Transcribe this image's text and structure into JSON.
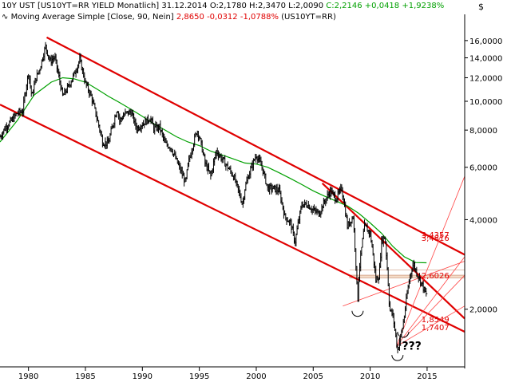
{
  "header": {
    "line1": {
      "symbol": "10Y UST [US10YT=RR YIELD Monatlich]",
      "date": "31.12.2014",
      "ohl": "O:2,1780 H:2,3470 L:2,0090",
      "close": "C:2,2146",
      "change": "+0,0418",
      "change_pct": "+1,9238%"
    },
    "line2": {
      "icon": "moving-average-icon",
      "label": "Moving Average Simple [Close, 90, Nein]",
      "value": "2,8650",
      "change": "-0,0312",
      "change_pct": "-1,0788%",
      "source": "(US10YT=RR)"
    },
    "currency": "$"
  },
  "colors": {
    "price": "#000000",
    "moving_average": "#00a000",
    "trendlines": "#e00000",
    "fib_lines": "#ff4444",
    "level_band": "#f5dcc8",
    "background": "#ffffff"
  },
  "chart_data": {
    "type": "ohlc",
    "x_axis": {
      "range": [
        1977.5,
        2018.3
      ],
      "ticks": [
        "1980",
        "1985",
        "1990",
        "1995",
        "2000",
        "2005",
        "2010",
        "2015"
      ]
    },
    "y_axis": {
      "scale": "log",
      "range": [
        1.28,
        18.2
      ],
      "ticks": [
        "16,0000",
        "14,0000",
        "12,0000",
        "10,0000",
        "8,0000",
        "6,0000",
        "4,0000",
        "2,0000"
      ],
      "side": "right"
    },
    "grid": false,
    "series": [
      {
        "kind": "price",
        "points": [
          [
            1977.5,
            7.6
          ],
          [
            1978,
            8.2
          ],
          [
            1978.5,
            8.6
          ],
          [
            1979,
            9.1
          ],
          [
            1979.5,
            9.3
          ],
          [
            1980,
            12.5
          ],
          [
            1980.3,
            10.3
          ],
          [
            1980.6,
            11.8
          ],
          [
            1981,
            12.9
          ],
          [
            1981.5,
            15.3
          ],
          [
            1981.9,
            13.6
          ],
          [
            1982.3,
            14.1
          ],
          [
            1982.6,
            12.4
          ],
          [
            1983,
            10.4
          ],
          [
            1983.5,
            11.2
          ],
          [
            1984,
            12.3
          ],
          [
            1984.5,
            13.8
          ],
          [
            1985,
            11.5
          ],
          [
            1985.5,
            10.4
          ],
          [
            1986,
            8.8
          ],
          [
            1986.5,
            7.3
          ],
          [
            1987,
            7.2
          ],
          [
            1987.5,
            8.6
          ],
          [
            1987.8,
            9.5
          ],
          [
            1988,
            8.6
          ],
          [
            1988.5,
            9.1
          ],
          [
            1989,
            9.2
          ],
          [
            1989.5,
            8.1
          ],
          [
            1990,
            8.4
          ],
          [
            1990.7,
            8.8
          ],
          [
            1991,
            8.1
          ],
          [
            1991.5,
            8.2
          ],
          [
            1992,
            7.2
          ],
          [
            1992.5,
            7.0
          ],
          [
            1993,
            6.3
          ],
          [
            1993.8,
            5.3
          ],
          [
            1994,
            6.1
          ],
          [
            1994.8,
            8.0
          ],
          [
            1995,
            7.6
          ],
          [
            1995.5,
            6.2
          ],
          [
            1996,
            5.6
          ],
          [
            1996.5,
            6.8
          ],
          [
            1997,
            6.4
          ],
          [
            1997.5,
            6.0
          ],
          [
            1998,
            5.6
          ],
          [
            1998.8,
            4.5
          ],
          [
            1999,
            5.1
          ],
          [
            1999.5,
            5.9
          ],
          [
            2000,
            6.6
          ],
          [
            2000.5,
            6.0
          ],
          [
            2001,
            5.1
          ],
          [
            2001.5,
            5.1
          ],
          [
            2002,
            5.0
          ],
          [
            2002.5,
            4.1
          ],
          [
            2003,
            3.9
          ],
          [
            2003.4,
            3.35
          ],
          [
            2004,
            4.5
          ],
          [
            2004.5,
            4.5
          ],
          [
            2005,
            4.3
          ],
          [
            2005.5,
            4.2
          ],
          [
            2006,
            4.6
          ],
          [
            2006.5,
            5.0
          ],
          [
            2007,
            4.7
          ],
          [
            2007.5,
            5.1
          ],
          [
            2008,
            3.8
          ],
          [
            2008.5,
            4.1
          ],
          [
            2008.9,
            2.08
          ],
          [
            2009,
            2.6
          ],
          [
            2009.5,
            3.8
          ],
          [
            2010,
            3.6
          ],
          [
            2010.5,
            2.5
          ],
          [
            2010.8,
            2.6
          ],
          [
            2011,
            3.4
          ],
          [
            2011.3,
            3.5
          ],
          [
            2011.7,
            2.0
          ],
          [
            2012,
            1.9
          ],
          [
            2012.4,
            1.45
          ],
          [
            2012.8,
            1.7
          ],
          [
            2013,
            1.9
          ],
          [
            2013.5,
            2.6
          ],
          [
            2013.8,
            2.85
          ],
          [
            2014,
            2.7
          ],
          [
            2014.5,
            2.45
          ],
          [
            2014.95,
            2.2146
          ]
        ]
      },
      {
        "kind": "moving_average",
        "name": "Moving Average Simple [Close, 90, Nein]",
        "points": [
          [
            1977.5,
            7.3
          ],
          [
            1979,
            8.6
          ],
          [
            1980.5,
            10.5
          ],
          [
            1982,
            11.6
          ],
          [
            1983,
            12.0
          ],
          [
            1984,
            11.9
          ],
          [
            1985,
            11.6
          ],
          [
            1986,
            11.0
          ],
          [
            1987,
            10.4
          ],
          [
            1988,
            9.9
          ],
          [
            1989,
            9.4
          ],
          [
            1990,
            8.9
          ],
          [
            1991,
            8.4
          ],
          [
            1992,
            8.0
          ],
          [
            1993,
            7.6
          ],
          [
            1994,
            7.3
          ],
          [
            1995,
            7.1
          ],
          [
            1996,
            6.8
          ],
          [
            1997,
            6.6
          ],
          [
            1998,
            6.4
          ],
          [
            1999,
            6.2
          ],
          [
            2000,
            6.15
          ],
          [
            2001,
            6.0
          ],
          [
            2002,
            5.75
          ],
          [
            2003,
            5.5
          ],
          [
            2004,
            5.25
          ],
          [
            2005,
            5.0
          ],
          [
            2006,
            4.8
          ],
          [
            2007,
            4.62
          ],
          [
            2008,
            4.45
          ],
          [
            2009,
            4.2
          ],
          [
            2010,
            3.9
          ],
          [
            2011,
            3.6
          ],
          [
            2012,
            3.25
          ],
          [
            2013,
            3.0
          ],
          [
            2014,
            2.87
          ],
          [
            2014.95,
            2.865
          ]
        ]
      }
    ],
    "level_labels": [
      "3,4357",
      "3,4816",
      "2,6026",
      "1,8549",
      "1,7407"
    ],
    "annotations": [
      "???"
    ],
    "trendlines": [
      {
        "from": [
          1977.5,
          9.75
        ],
        "to": [
          2018.3,
          1.68
        ]
      },
      {
        "from": [
          1981.6,
          16.4
        ],
        "to": [
          2018.3,
          3.05
        ]
      },
      {
        "from": [
          2005.8,
          5.3
        ],
        "to": [
          2018.3,
          1.86
        ]
      }
    ]
  }
}
